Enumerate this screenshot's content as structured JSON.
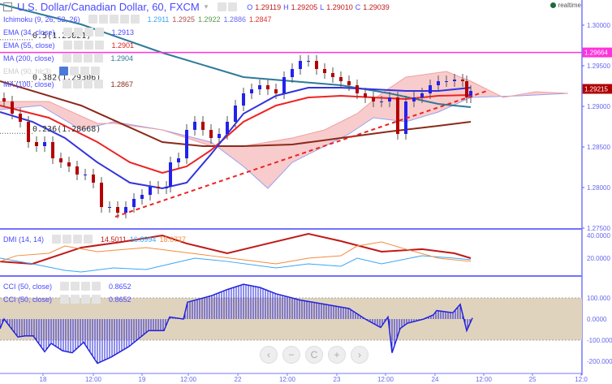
{
  "header": {
    "title": "U.S. Dollar/Canadian Dollar, 60, FXCM",
    "o_label": "O",
    "o": "1.29119",
    "h_label": "H",
    "h": "1.29205",
    "l_label": "L",
    "l": "1.29010",
    "c_label": "C",
    "c": "1.29039",
    "realtime": "realtime"
  },
  "legends": {
    "ichimoku": {
      "label": "Ichimoku (9, 26, 52, 26)",
      "v1": "1.2911",
      "v2": "1.2925",
      "v3": "1.2922",
      "v4": "1.2886",
      "v5": "1.2847"
    },
    "ema34": {
      "label": "EMA (34, close)",
      "value": "1.2913"
    },
    "ema55": {
      "label": "EMA (55, close)",
      "value": "1.2901"
    },
    "ma200": {
      "label": "MA (200, close)",
      "value": "1.2904"
    },
    "ema90": {
      "label": "EMA (90, hlc3)"
    },
    "ma100": {
      "label": "MA (100, close)",
      "value": "1.2867"
    },
    "dmi": {
      "label": "DMI (14, 14)",
      "v1": "14.5011",
      "v2": "16.8994",
      "v3": "18.6727"
    },
    "cci1": {
      "label": "CCI (50, close)",
      "value": "0.8652"
    },
    "cci2": {
      "label": "CCI (50, close)",
      "value": "0.8652"
    }
  },
  "fib": [
    {
      "label": "0.5(1.29821)",
      "price": 1.29821
    },
    {
      "label": "0.382(1.29306)",
      "price": 1.29306
    },
    {
      "label": "0.236(1.28668)",
      "price": 1.28668
    }
  ],
  "colors": {
    "up": "#2222ee",
    "down": "#b50000",
    "ema34": "#3333dd",
    "ema55": "#ee2222",
    "ma200": "#2e7a9a",
    "ma100": "#8b2a1a",
    "cloud_bear": "#f7c6c6",
    "cloud_bull": "#cfe6cc",
    "hline": "#ff33dd",
    "band": "#e0d3bd"
  },
  "chart_data": {
    "type": "candlestick",
    "price_axis": {
      "ticks": [
        "1.30000",
        "1.29500",
        "1.29000",
        "1.28500",
        "1.28000",
        "1.27500"
      ],
      "range": [
        1.2745,
        1.3031
      ]
    },
    "hline": {
      "price": 1.29664,
      "label": "1.29664"
    },
    "last": {
      "price": 1.29215,
      "label": "1.29215"
    },
    "time_ticks": [
      {
        "h": 10.6,
        "label": "18"
      },
      {
        "h": 23,
        "label": "12:00"
      },
      {
        "h": 35,
        "label": "19"
      },
      {
        "h": 46.4,
        "label": "12:00"
      },
      {
        "h": 58.6,
        "label": "22"
      },
      {
        "h": 70.8,
        "label": "12:00"
      },
      {
        "h": 83,
        "label": "23"
      },
      {
        "h": 95,
        "label": "12:00"
      },
      {
        "h": 107.2,
        "label": "24"
      },
      {
        "h": 119.2,
        "label": "12:00"
      },
      {
        "h": 131.2,
        "label": "25"
      },
      {
        "h": 143.2,
        "label": "12:0"
      }
    ],
    "closes": [
      [
        1,
        1.2906
      ],
      [
        3,
        1.2891
      ],
      [
        5,
        1.2881
      ],
      [
        7,
        1.2856
      ],
      [
        9,
        1.2851
      ],
      [
        11,
        1.2856
      ],
      [
        13,
        1.2836
      ],
      [
        15,
        1.2831
      ],
      [
        17,
        1.2826
      ],
      [
        19,
        1.2816
      ],
      [
        21,
        1.2816
      ],
      [
        23,
        1.2806
      ],
      [
        25,
        1.2776
      ],
      [
        27,
        1.2776
      ],
      [
        29,
        1.2769
      ],
      [
        31,
        1.2776
      ],
      [
        33,
        1.2786
      ],
      [
        35,
        1.2791
      ],
      [
        37,
        1.2801
      ],
      [
        39,
        1.2799
      ],
      [
        41,
        1.2801
      ],
      [
        42,
        1.2831
      ],
      [
        44,
        1.2836
      ],
      [
        46,
        1.2871
      ],
      [
        48,
        1.2881
      ],
      [
        50,
        1.2871
      ],
      [
        52,
        1.2861
      ],
      [
        54,
        1.2866
      ],
      [
        56,
        1.2881
      ],
      [
        58,
        1.2901
      ],
      [
        60,
        1.2916
      ],
      [
        62,
        1.2921
      ],
      [
        64,
        1.2926
      ],
      [
        66,
        1.2921
      ],
      [
        68,
        1.2916
      ],
      [
        70,
        1.2936
      ],
      [
        72,
        1.2946
      ],
      [
        74,
        1.2956
      ],
      [
        76,
        1.2956
      ],
      [
        78,
        1.2946
      ],
      [
        80,
        1.2941
      ],
      [
        82,
        1.2936
      ],
      [
        84,
        1.2931
      ],
      [
        86,
        1.2926
      ],
      [
        88,
        1.2916
      ],
      [
        90,
        1.2911
      ],
      [
        92,
        1.2906
      ],
      [
        94,
        1.2906
      ],
      [
        96,
        1.2911
      ],
      [
        98,
        1.2866
      ],
      [
        100,
        1.2906
      ],
      [
        102,
        1.2911
      ],
      [
        104,
        1.2916
      ],
      [
        106,
        1.2926
      ],
      [
        108,
        1.2931
      ],
      [
        110,
        1.2931
      ],
      [
        112,
        1.2933
      ],
      [
        114,
        1.2931
      ],
      [
        115,
        1.2911
      ],
      [
        116,
        1.2919
      ]
    ],
    "ema34": [
      [
        0,
        1.2893
      ],
      [
        8,
        1.2881
      ],
      [
        16,
        1.2861
      ],
      [
        24,
        1.2831
      ],
      [
        32,
        1.2806
      ],
      [
        40,
        1.2799
      ],
      [
        46,
        1.2806
      ],
      [
        52,
        1.2841
      ],
      [
        60,
        1.2891
      ],
      [
        68,
        1.2913
      ],
      [
        76,
        1.2923
      ],
      [
        84,
        1.2923
      ],
      [
        92,
        1.2921
      ],
      [
        100,
        1.2919
      ],
      [
        108,
        1.2919
      ],
      [
        116,
        1.2923
      ]
    ],
    "ema55": [
      [
        0,
        1.2901
      ],
      [
        12,
        1.2886
      ],
      [
        24,
        1.2856
      ],
      [
        32,
        1.2831
      ],
      [
        40,
        1.2818
      ],
      [
        46,
        1.2826
      ],
      [
        52,
        1.2846
      ],
      [
        60,
        1.2881
      ],
      [
        68,
        1.2901
      ],
      [
        76,
        1.2911
      ],
      [
        84,
        1.2913
      ],
      [
        92,
        1.2911
      ],
      [
        100,
        1.2909
      ],
      [
        108,
        1.2913
      ],
      [
        116,
        1.2914
      ]
    ],
    "ma200": [
      [
        0,
        1.3026
      ],
      [
        20,
        1.3001
      ],
      [
        40,
        1.2966
      ],
      [
        60,
        1.2936
      ],
      [
        72,
        1.2931
      ],
      [
        84,
        1.2926
      ],
      [
        96,
        1.2916
      ],
      [
        108,
        1.2903
      ],
      [
        116,
        1.2899
      ]
    ],
    "ma100": [
      [
        0,
        1.2931
      ],
      [
        20,
        1.2901
      ],
      [
        40,
        1.2856
      ],
      [
        50,
        1.2851
      ],
      [
        60,
        1.2851
      ],
      [
        72,
        1.2853
      ],
      [
        84,
        1.2861
      ],
      [
        96,
        1.2869
      ],
      [
        108,
        1.2876
      ],
      [
        116,
        1.2881
      ]
    ],
    "span_a": [
      [
        0,
        1.2896
      ],
      [
        10,
        1.2901
      ],
      [
        20,
        1.2871
      ],
      [
        28,
        1.2881
      ],
      [
        40,
        1.2871
      ],
      [
        52,
        1.2856
      ],
      [
        60,
        1.2826
      ],
      [
        66,
        1.2799
      ],
      [
        72,
        1.2831
      ],
      [
        80,
        1.2851
      ],
      [
        86,
        1.2866
      ],
      [
        92,
        1.2886
      ],
      [
        100,
        1.2881
      ],
      [
        108,
        1.2893
      ],
      [
        116,
        1.2911
      ],
      [
        128,
        1.2913
      ],
      [
        140,
        1.2916
      ]
    ],
    "span_b": [
      [
        0,
        1.2906
      ],
      [
        12,
        1.2906
      ],
      [
        24,
        1.2879
      ],
      [
        28,
        1.2879
      ],
      [
        40,
        1.2871
      ],
      [
        52,
        1.2851
      ],
      [
        60,
        1.2851
      ],
      [
        72,
        1.2861
      ],
      [
        80,
        1.2871
      ],
      [
        88,
        1.2891
      ],
      [
        94,
        1.2916
      ],
      [
        100,
        1.2936
      ],
      [
        110,
        1.2943
      ],
      [
        116,
        1.2931
      ],
      [
        124,
        1.2911
      ],
      [
        132,
        1.2918
      ],
      [
        140,
        1.2916
      ]
    ],
    "trendline": [
      [
        28.4,
        1.2764
      ],
      [
        120,
        1.2919
      ]
    ],
    "dmi": {
      "ticks": [
        "40.0000",
        "20.0000"
      ],
      "series": [
        {
          "name": "ADX",
          "color": "#c01818",
          "points": [
            [
              0,
              17.1
            ],
            [
              8,
              15
            ],
            [
              20,
              29.3
            ],
            [
              30,
              34.3
            ],
            [
              40,
              40
            ],
            [
              46,
              32.9
            ],
            [
              56,
              24.3
            ],
            [
              66,
              32.9
            ],
            [
              76,
              41.4
            ],
            [
              84,
              35
            ],
            [
              94,
              25.7
            ],
            [
              104,
              27.9
            ],
            [
              112,
              24.3
            ],
            [
              116,
              20
            ]
          ]
        },
        {
          "name": "+DI",
          "color": "#39a6f5",
          "points": [
            [
              0,
              20
            ],
            [
              8,
              15
            ],
            [
              16,
              9.3
            ],
            [
              20,
              7.9
            ],
            [
              28,
              11.4
            ],
            [
              36,
              10
            ],
            [
              48,
              20
            ],
            [
              56,
              17.1
            ],
            [
              68,
              11.4
            ],
            [
              76,
              15
            ],
            [
              84,
              12.9
            ],
            [
              88,
              20
            ],
            [
              94,
              15
            ],
            [
              104,
              22.1
            ],
            [
              112,
              20
            ],
            [
              116,
              18.6
            ]
          ]
        },
        {
          "name": "-DI",
          "color": "#f58a3c",
          "points": [
            [
              0,
              17.1
            ],
            [
              4,
              22.1
            ],
            [
              12,
              24.3
            ],
            [
              16,
              30.7
            ],
            [
              24,
              25.7
            ],
            [
              36,
              29.3
            ],
            [
              44,
              25.7
            ],
            [
              52,
              22.1
            ],
            [
              60,
              18.6
            ],
            [
              68,
              15
            ],
            [
              76,
              20
            ],
            [
              84,
              22.1
            ],
            [
              88,
              30.7
            ],
            [
              94,
              34.3
            ],
            [
              100,
              27.9
            ],
            [
              108,
              20
            ],
            [
              116,
              17.1
            ]
          ]
        }
      ]
    },
    "cci": {
      "ticks": [
        "100.000",
        "0.0000",
        "-100.000",
        "-200.000"
      ],
      "points": [
        [
          0,
          -46
        ],
        [
          1,
          0
        ],
        [
          4.4,
          -85
        ],
        [
          6.2,
          -80
        ],
        [
          8.2,
          -80
        ],
        [
          11,
          -155
        ],
        [
          12.6,
          -115
        ],
        [
          15.4,
          -150
        ],
        [
          17.8,
          -160
        ],
        [
          20.6,
          -110
        ],
        [
          24,
          -210
        ],
        [
          27.4,
          -180
        ],
        [
          31.8,
          -130
        ],
        [
          36.6,
          -55
        ],
        [
          40.4,
          -55
        ],
        [
          41.8,
          10
        ],
        [
          45.2,
          0
        ],
        [
          46.2,
          80
        ],
        [
          52,
          110
        ],
        [
          56,
          140
        ],
        [
          60,
          165
        ],
        [
          64,
          150
        ],
        [
          68,
          120
        ],
        [
          74,
          90
        ],
        [
          80,
          70
        ],
        [
          86,
          50
        ],
        [
          90,
          0
        ],
        [
          93.8,
          -40
        ],
        [
          95.6,
          10
        ],
        [
          96.6,
          -160
        ],
        [
          98.6,
          -45
        ],
        [
          100.4,
          -20
        ],
        [
          104.4,
          0
        ],
        [
          106.8,
          20
        ],
        [
          107.6,
          40
        ],
        [
          111.6,
          30
        ],
        [
          113.4,
          70
        ],
        [
          115,
          -55
        ],
        [
          116.4,
          5
        ]
      ]
    }
  },
  "nav": {
    "prev": "‹",
    "zoom_out": "−",
    "reset": "C",
    "zoom_in": "+",
    "next": "›"
  }
}
